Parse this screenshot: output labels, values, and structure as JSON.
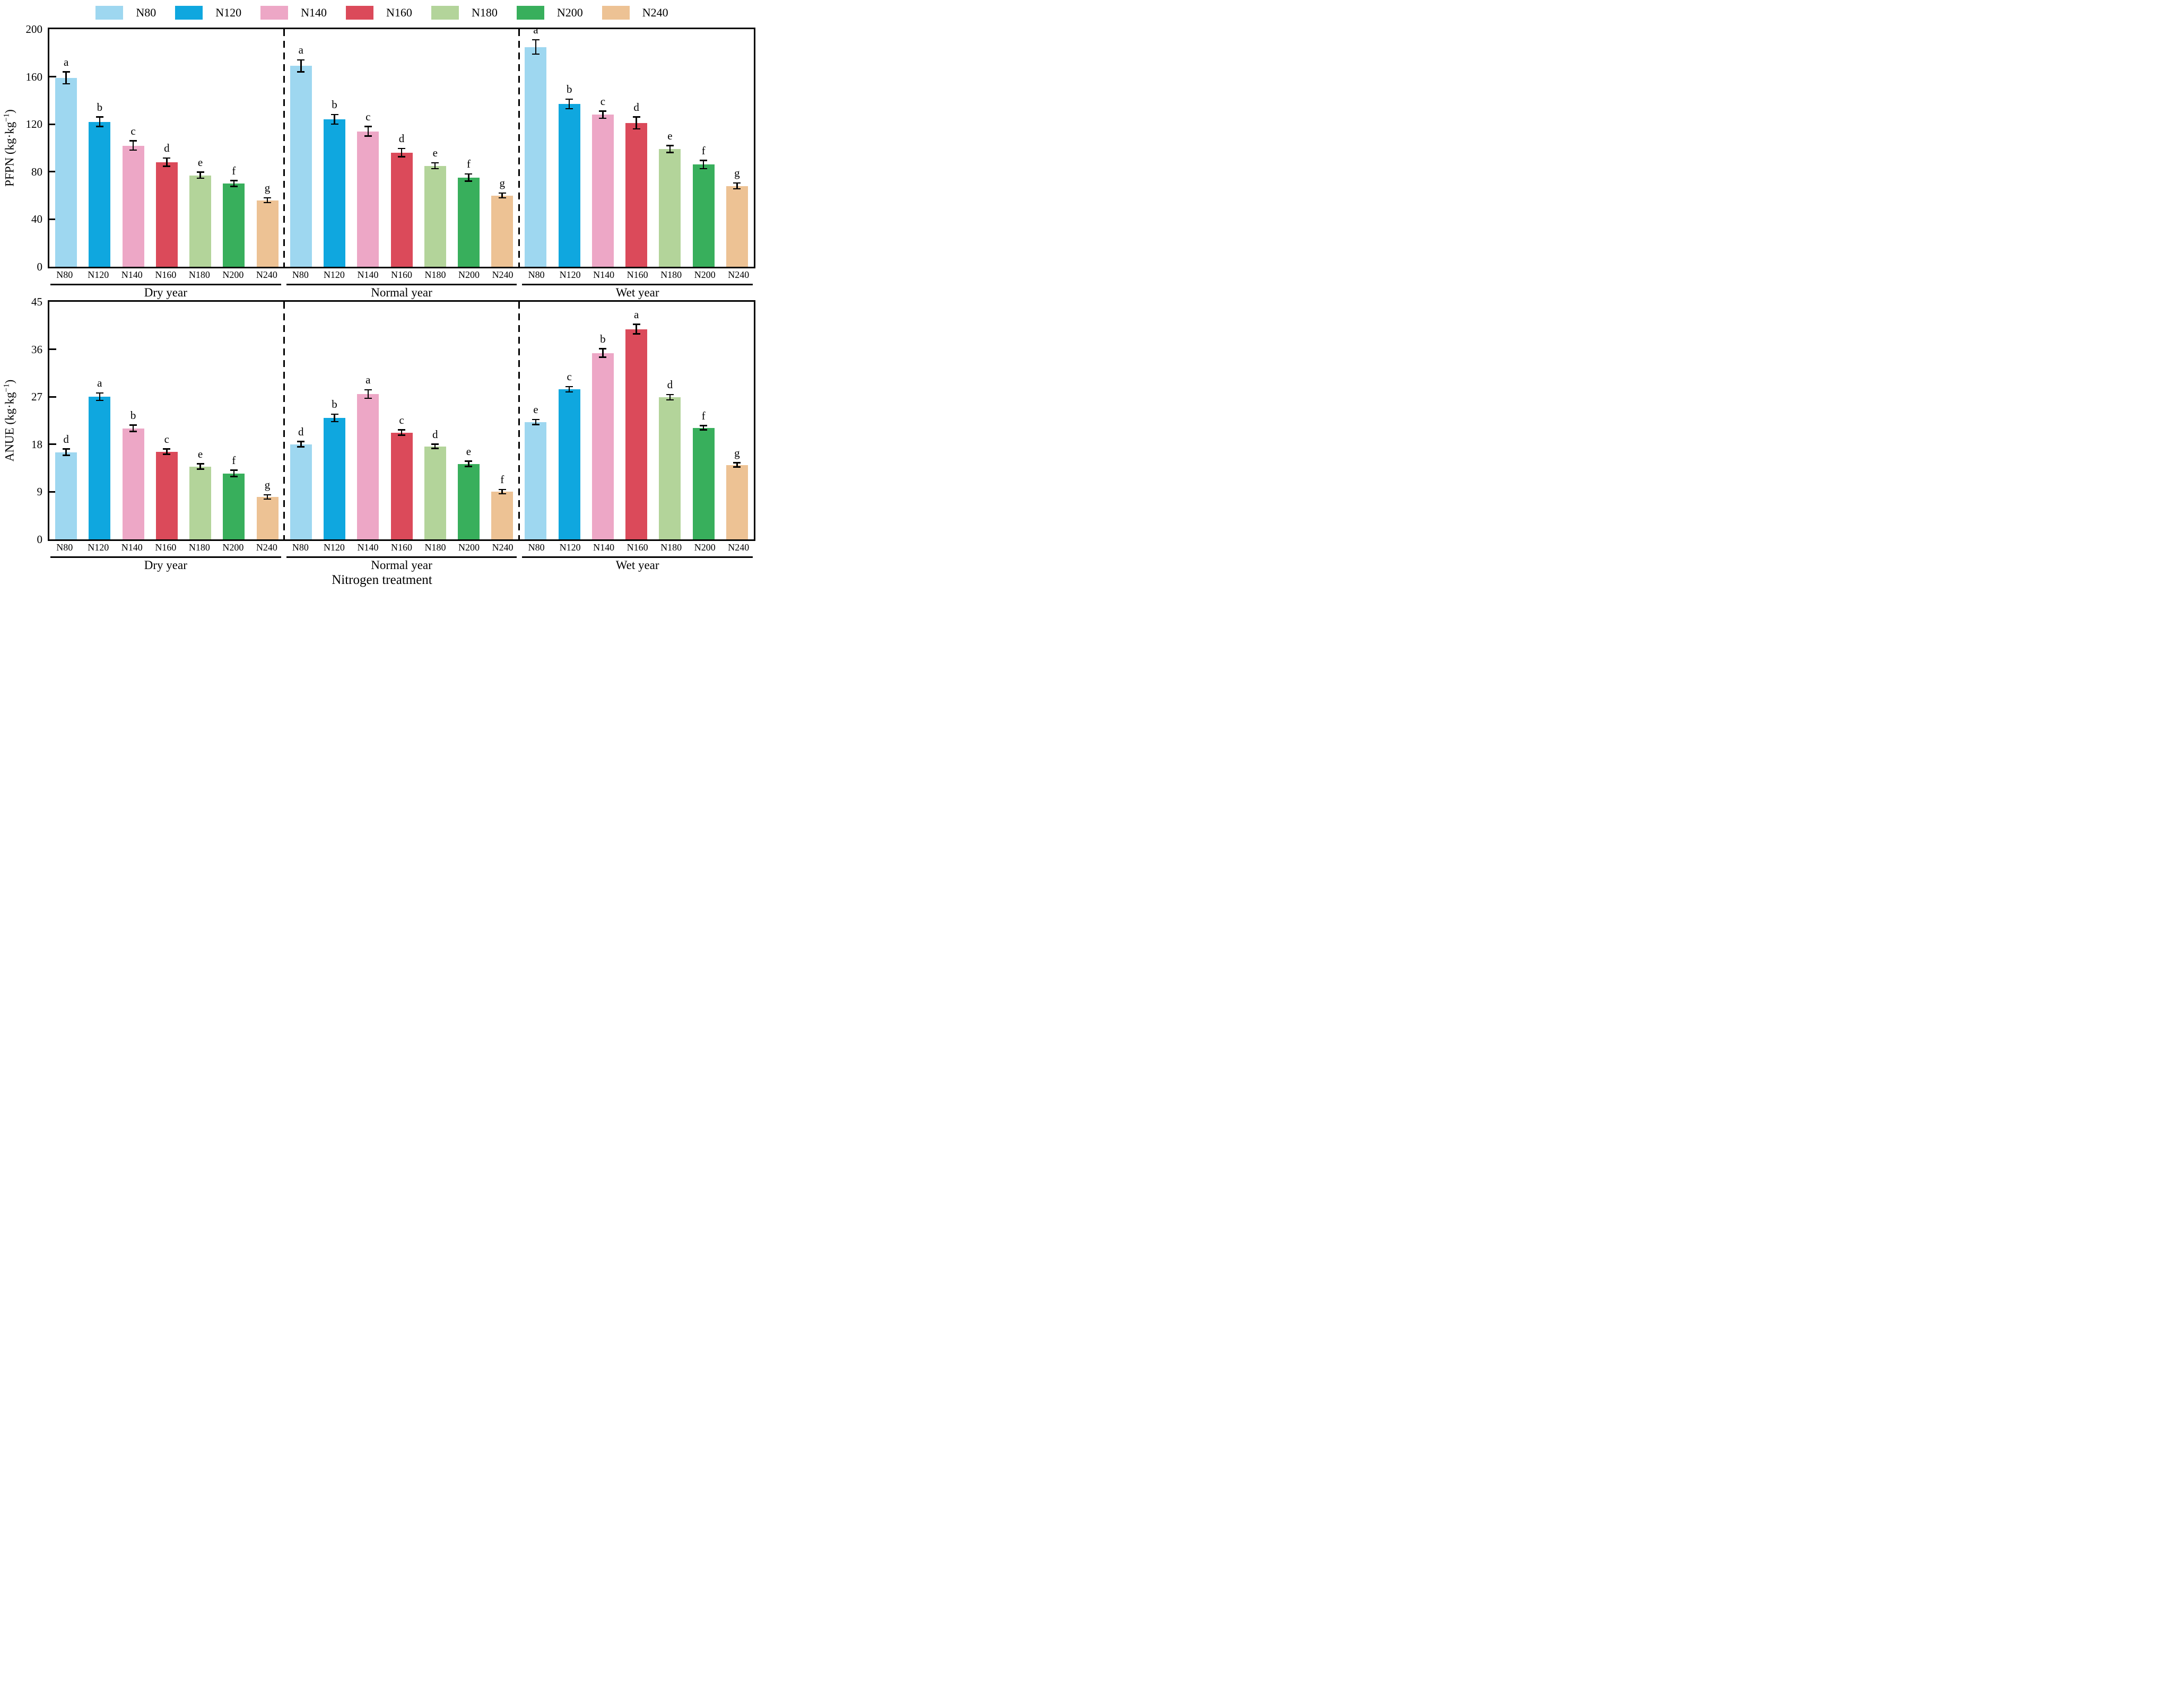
{
  "xlabel": "Nitrogen treatment",
  "legend": {
    "items": [
      {
        "label": "N80",
        "color": "#9ED7F0"
      },
      {
        "label": "N120",
        "color": "#0FA7DF"
      },
      {
        "label": "N140",
        "color": "#EDA7C6"
      },
      {
        "label": "N160",
        "color": "#DB4A5A"
      },
      {
        "label": "N180",
        "color": "#B3D49A"
      },
      {
        "label": "N200",
        "color": "#38AF5C"
      },
      {
        "label": "N240",
        "color": "#EDC294"
      }
    ]
  },
  "chart_data": [
    {
      "type": "bar",
      "ylabel_pre": "PFPN (kg·kg",
      "ylabel_sup": "−1",
      "ylabel_post": ")",
      "ylim": [
        0,
        200
      ],
      "yticks": [
        0,
        40,
        80,
        120,
        160,
        200
      ],
      "categories": [
        "N80",
        "N120",
        "N140",
        "N160",
        "N180",
        "N200",
        "N240"
      ],
      "groups": [
        {
          "label": "Dry year",
          "values": [
            159,
            122,
            102,
            88,
            77,
            70,
            56
          ],
          "errors": [
            5,
            4,
            4,
            3.5,
            2.5,
            2.5,
            2
          ],
          "letters": [
            "a",
            "b",
            "c",
            "d",
            "e",
            "f",
            "g"
          ]
        },
        {
          "label": "Normal year",
          "values": [
            169,
            124,
            114,
            96,
            85,
            75,
            60
          ],
          "errors": [
            5,
            4,
            4,
            3.5,
            2.5,
            3,
            2
          ],
          "letters": [
            "a",
            "b",
            "c",
            "d",
            "e",
            "f",
            "g"
          ]
        },
        {
          "label": "Wet year",
          "values": [
            185,
            137,
            128,
            121,
            99,
            86,
            68
          ],
          "errors": [
            6,
            4,
            3,
            5,
            3,
            3.5,
            2.5
          ],
          "letters": [
            "a",
            "b",
            "c",
            "d",
            "e",
            "f",
            "g"
          ]
        }
      ]
    },
    {
      "type": "bar",
      "ylabel_pre": "ANUE (kg·kg",
      "ylabel_sup": "−1",
      "ylabel_post": ")",
      "ylim": [
        0,
        45
      ],
      "yticks": [
        0,
        9,
        18,
        27,
        36,
        45
      ],
      "categories": [
        "N80",
        "N120",
        "N140",
        "N160",
        "N180",
        "N200",
        "N240"
      ],
      "groups": [
        {
          "label": "Dry year",
          "values": [
            16.5,
            27.0,
            21.0,
            16.6,
            13.8,
            12.5,
            8.0
          ],
          "errors": [
            0.6,
            0.7,
            0.6,
            0.5,
            0.5,
            0.6,
            0.4
          ],
          "letters": [
            "d",
            "a",
            "b",
            "c",
            "e",
            "f",
            "g"
          ]
        },
        {
          "label": "Normal year",
          "values": [
            18.0,
            23.0,
            27.5,
            20.2,
            17.6,
            14.3,
            9.0
          ],
          "errors": [
            0.5,
            0.7,
            0.8,
            0.5,
            0.4,
            0.5,
            0.4
          ],
          "letters": [
            "d",
            "b",
            "a",
            "c",
            "d",
            "e",
            "f"
          ]
        },
        {
          "label": "Wet year",
          "values": [
            22.2,
            28.4,
            35.3,
            39.8,
            26.9,
            21.1,
            14.1
          ],
          "errors": [
            0.5,
            0.5,
            0.8,
            0.9,
            0.5,
            0.4,
            0.4
          ],
          "letters": [
            "e",
            "c",
            "b",
            "a",
            "d",
            "f",
            "g"
          ]
        }
      ]
    }
  ]
}
